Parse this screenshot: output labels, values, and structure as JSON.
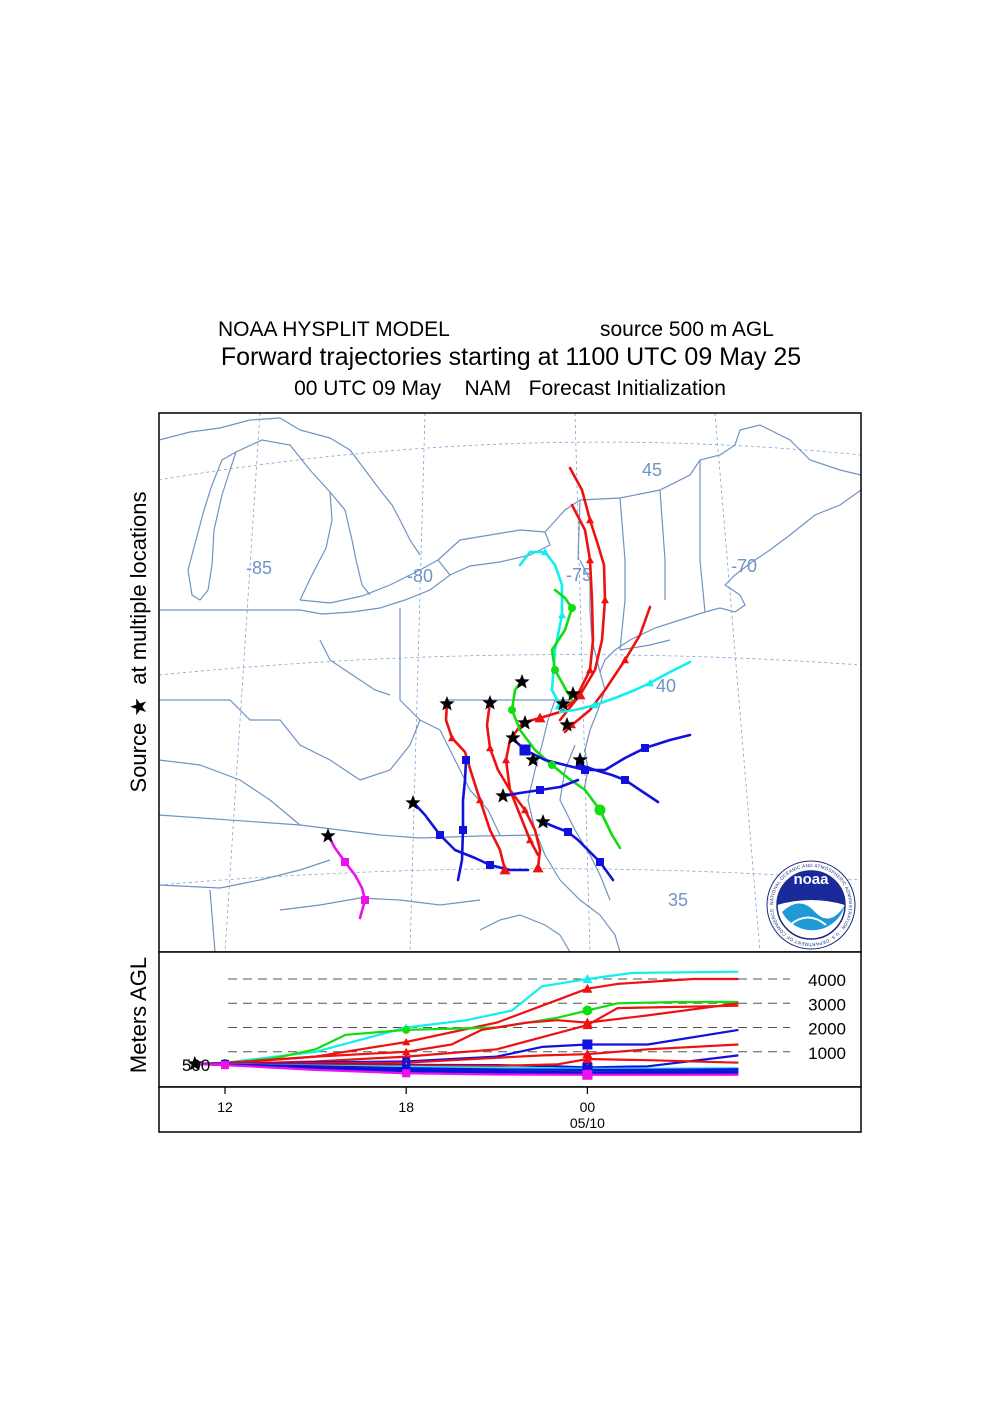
{
  "header": {
    "model": "NOAA HYSPLIT MODEL",
    "source": "source 500 m AGL",
    "title": "Forward trajectories starting at 1100 UTC 09 May 25",
    "meteo": "00 UTC 09 May    NAM   Forecast Initialization"
  },
  "map": {
    "ylabel": "Source ★  at multiple locations",
    "lon_labels": [
      "-85",
      "-80",
      "-75",
      "-70"
    ],
    "lat_labels": [
      "45",
      "40",
      "35"
    ]
  },
  "logo": {
    "text": "noaa",
    "ring_text": "NATIONAL OCEANIC AND ATMOSPHERIC ADMINISTRATION · U.S. DEPARTMENT OF COMMERCE"
  },
  "colors": {
    "red": "#ee1111",
    "blue": "#1111dd",
    "green": "#11dd11",
    "cyan": "#11eeee",
    "magenta": "#ee11ee",
    "geo": "#6f93c4"
  },
  "chart_data": {
    "type": "line",
    "title": "Forward trajectories starting at 1100 UTC 09 May 25",
    "xlabel": "",
    "ylabel": "Meters AGL",
    "x_ticks": [
      "12",
      "18",
      "00"
    ],
    "x_sublabel": "05/10",
    "x_range_hours": [
      9.7,
      29.0
    ],
    "start_hour": 11,
    "y_ticks": [
      1000,
      2000,
      3000,
      4000
    ],
    "y_start_label": "500",
    "ylim": [
      0,
      4600
    ],
    "series": [
      {
        "color": "cyan",
        "marker": "triangle",
        "x": [
          11,
          12,
          15,
          18,
          20,
          21.5,
          22.5,
          24,
          25.5,
          29
        ],
        "y": [
          500,
          550,
          1000,
          2000,
          2300,
          2700,
          3700,
          4000,
          4250,
          4300
        ]
      },
      {
        "color": "red",
        "marker": "triangle",
        "x": [
          11,
          12,
          15,
          18,
          21,
          22.5,
          24,
          25,
          27.5,
          29
        ],
        "y": [
          500,
          520,
          800,
          1400,
          2200,
          2900,
          3600,
          3800,
          4000,
          4000
        ]
      },
      {
        "color": "green",
        "marker": "circle",
        "x": [
          11,
          12,
          13.5,
          15,
          16,
          18,
          21,
          23,
          24,
          25,
          27,
          29
        ],
        "y": [
          500,
          540,
          700,
          1100,
          1700,
          1900,
          2000,
          2400,
          2700,
          3000,
          3050,
          3050
        ]
      },
      {
        "color": "red",
        "marker": "triangle",
        "x": [
          11,
          12,
          15,
          18,
          19.5,
          20.5,
          22,
          23,
          24,
          26,
          29
        ],
        "y": [
          500,
          540,
          800,
          1000,
          1300,
          1900,
          2200,
          2300,
          2200,
          2500,
          3000
        ]
      },
      {
        "color": "red",
        "marker": "triangle",
        "x": [
          11,
          12,
          15,
          18,
          21,
          22.5,
          24,
          25,
          29
        ],
        "y": [
          500,
          500,
          600,
          800,
          1100,
          1600,
          2100,
          2800,
          2900
        ]
      },
      {
        "color": "blue",
        "marker": "square",
        "x": [
          11,
          12,
          15,
          18,
          21,
          22.5,
          24,
          26,
          29
        ],
        "y": [
          500,
          500,
          560,
          600,
          800,
          1200,
          1300,
          1300,
          1900
        ]
      },
      {
        "color": "red",
        "marker": "triangle",
        "x": [
          11,
          12,
          15,
          18,
          21,
          22.5,
          24,
          26,
          29
        ],
        "y": [
          500,
          500,
          520,
          550,
          750,
          850,
          900,
          1100,
          1300
        ]
      },
      {
        "color": "blue",
        "marker": "square",
        "x": [
          11,
          12,
          15,
          18,
          21,
          23,
          24,
          26,
          29
        ],
        "y": [
          500,
          490,
          470,
          460,
          450,
          400,
          350,
          400,
          850
        ]
      },
      {
        "color": "red",
        "marker": "triangle",
        "x": [
          11,
          12,
          15,
          18,
          21,
          23,
          24,
          26,
          29
        ],
        "y": [
          500,
          480,
          450,
          430,
          420,
          480,
          700,
          650,
          550
        ]
      },
      {
        "color": "green",
        "marker": "circle",
        "x": [
          11,
          12,
          15,
          18,
          21,
          24,
          26,
          29
        ],
        "y": [
          500,
          470,
          380,
          280,
          240,
          220,
          230,
          280
        ]
      },
      {
        "color": "cyan",
        "marker": "triangle",
        "x": [
          11,
          12,
          15,
          18,
          21,
          24,
          26,
          29
        ],
        "y": [
          500,
          480,
          420,
          380,
          340,
          300,
          300,
          320
        ]
      },
      {
        "color": "blue",
        "marker": "square",
        "x": [
          11,
          12,
          15,
          18,
          21,
          24,
          26,
          29
        ],
        "y": [
          500,
          470,
          400,
          320,
          270,
          250,
          250,
          280
        ]
      },
      {
        "color": "blue",
        "marker": "square",
        "x": [
          11,
          12,
          15,
          18,
          21,
          24,
          26,
          29
        ],
        "y": [
          500,
          450,
          350,
          240,
          180,
          150,
          160,
          200
        ]
      },
      {
        "color": "blue",
        "marker": "square",
        "x": [
          11,
          12,
          15,
          18,
          21,
          24,
          26,
          29
        ],
        "y": [
          500,
          460,
          300,
          200,
          130,
          100,
          110,
          130
        ]
      },
      {
        "color": "magenta",
        "marker": "square",
        "x": [
          11,
          12,
          15,
          18,
          21,
          24,
          26,
          29
        ],
        "y": [
          500,
          450,
          250,
          110,
          60,
          50,
          50,
          50
        ]
      }
    ]
  }
}
